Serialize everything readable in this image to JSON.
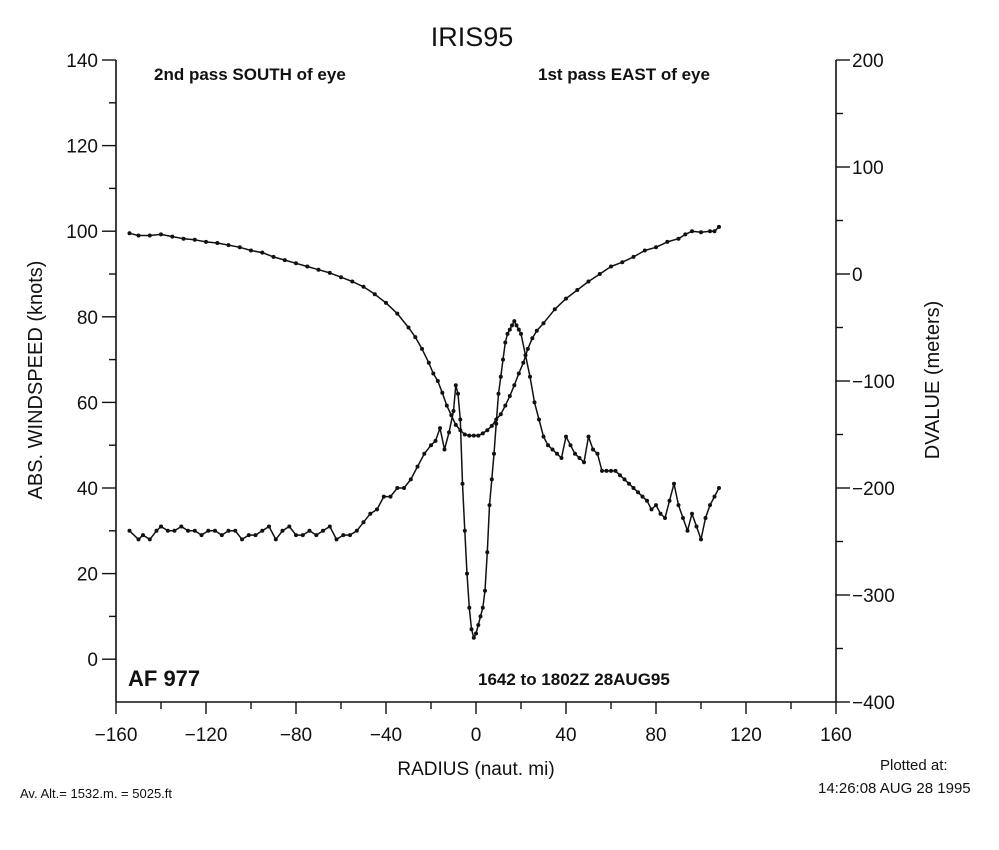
{
  "chart_data": {
    "type": "line",
    "title": "IRIS95",
    "xlabel": "RADIUS (naut. mi)",
    "ylabel_left": "ABS. WINDSPEED (knots)",
    "ylabel_right": "DVALUE (meters)",
    "xlim": [
      -160,
      160
    ],
    "ylim_left": [
      -10,
      140
    ],
    "ylim_right": [
      -400,
      200
    ],
    "x_ticks": [
      "−160",
      "−120",
      "−80",
      "−40",
      "0",
      "40",
      "80",
      "120",
      "160"
    ],
    "y_left_ticks": [
      "0",
      "20",
      "40",
      "60",
      "80",
      "100",
      "120",
      "140"
    ],
    "y_right_ticks": [
      "−400",
      "−300",
      "−200",
      "−100",
      "0",
      "100",
      "200"
    ],
    "annotations": {
      "left_pass": "2nd pass SOUTH of eye",
      "right_pass": "1st pass EAST of eye",
      "aircraft": "AF 977",
      "time_range": "1642 to 1802Z 28AUG95"
    },
    "series": [
      {
        "axis": "left",
        "x": [
          -154,
          -150,
          -148,
          -145,
          -142,
          -140,
          -137,
          -134,
          -131,
          -128,
          -125,
          -122,
          -119,
          -116,
          -113,
          -110,
          -107,
          -104,
          -101,
          -98,
          -95,
          -92,
          -89,
          -86,
          -83,
          -80,
          -77,
          -74,
          -71,
          -68,
          -65,
          -62,
          -59,
          -56,
          -53,
          -50,
          -47,
          -44,
          -41,
          -38,
          -35,
          -32,
          -29,
          -26,
          -23,
          -20,
          -18,
          -16,
          -14,
          -12,
          -10,
          -9,
          -8,
          -7,
          -6,
          -5,
          -4,
          -3,
          -2,
          -1,
          0,
          1,
          2,
          3,
          4,
          5,
          6,
          7,
          8,
          9,
          10,
          11,
          12,
          13,
          14,
          15,
          16,
          17,
          18,
          19,
          20,
          22,
          24,
          26,
          28,
          30,
          32,
          34,
          36,
          38,
          40,
          42,
          44,
          46,
          48,
          50,
          52,
          54,
          56,
          58,
          60,
          62,
          64,
          66,
          68,
          70,
          72,
          74,
          76,
          78,
          80,
          82,
          84,
          86,
          88,
          90,
          92,
          94,
          96,
          98,
          100,
          102,
          104,
          106,
          108
        ],
        "y": [
          30,
          28,
          29,
          28,
          30,
          31,
          30,
          30,
          31,
          30,
          30,
          29,
          30,
          30,
          29,
          30,
          30,
          28,
          29,
          29,
          30,
          31,
          28,
          30,
          31,
          29,
          29,
          30,
          29,
          30,
          31,
          28,
          29,
          29,
          30,
          32,
          34,
          35,
          38,
          38,
          40,
          40,
          42,
          45,
          48,
          50,
          51,
          54,
          49,
          53,
          58,
          64,
          62,
          56,
          41,
          30,
          20,
          12,
          7,
          5,
          6,
          8,
          10,
          12,
          16,
          25,
          36,
          42,
          48,
          55,
          62,
          66,
          70,
          74,
          76,
          77,
          78,
          79,
          78,
          77,
          76,
          71,
          66,
          60,
          56,
          52,
          50,
          49,
          48,
          47,
          52,
          50,
          48,
          47,
          46,
          52,
          49,
          48,
          44,
          44,
          44,
          44,
          43,
          42,
          41,
          40,
          39,
          38,
          37,
          35,
          36,
          34,
          33,
          37,
          41,
          36,
          33,
          30,
          34,
          31,
          28,
          33,
          36,
          38,
          40
        ]
      },
      {
        "axis": "right",
        "x": [
          -154,
          -150,
          -145,
          -140,
          -135,
          -130,
          -125,
          -120,
          -115,
          -110,
          -105,
          -100,
          -95,
          -90,
          -85,
          -80,
          -75,
          -70,
          -65,
          -60,
          -55,
          -50,
          -45,
          -40,
          -35,
          -30,
          -27,
          -24,
          -21,
          -19,
          -17,
          -15,
          -13,
          -11,
          -9,
          -7,
          -5,
          -3,
          -1,
          1,
          3,
          5,
          7,
          9,
          11,
          13,
          15,
          17,
          19,
          21,
          23,
          25,
          27,
          30,
          35,
          40,
          45,
          50,
          55,
          60,
          65,
          70,
          75,
          80,
          85,
          90,
          93,
          96,
          100,
          104,
          106,
          108
        ],
        "y": [
          38,
          36,
          36,
          37,
          35,
          33,
          32,
          30,
          29,
          27,
          25,
          22,
          20,
          16,
          13,
          10,
          7,
          4,
          1,
          -3,
          -7,
          -12,
          -19,
          -27,
          -37,
          -50,
          -59,
          -70,
          -83,
          -93,
          -100,
          -111,
          -123,
          -132,
          -141,
          -146,
          -150,
          -151,
          -151,
          -151,
          -149,
          -146,
          -142,
          -136,
          -131,
          -123,
          -114,
          -104,
          -93,
          -83,
          -70,
          -60,
          -53,
          -46,
          -33,
          -23,
          -15,
          -7,
          0,
          7,
          11,
          16,
          22,
          25,
          30,
          33,
          37,
          40,
          39,
          40,
          40,
          44
        ]
      }
    ]
  },
  "footer": {
    "altitude": "Av. Alt.= 1532.m. =  5025.ft",
    "plotted_label": "Plotted at:",
    "plotted_time": "14:26:08 AUG 28 1995"
  }
}
